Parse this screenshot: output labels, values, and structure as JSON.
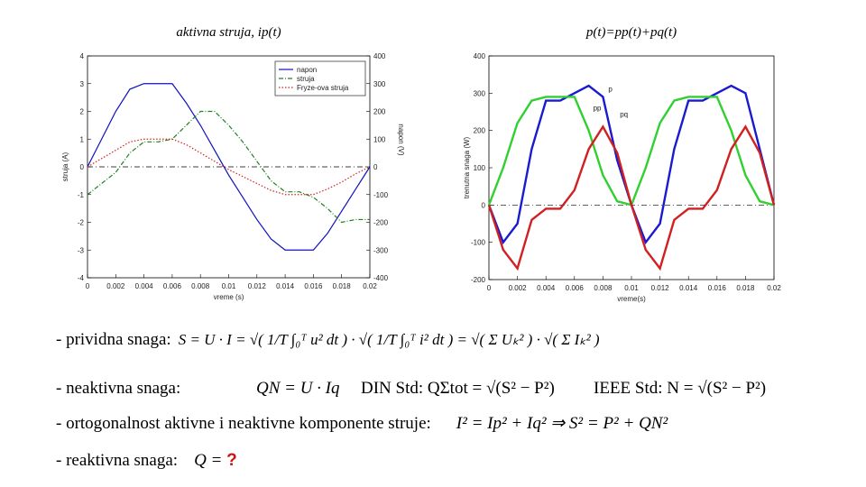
{
  "chart_data": [
    {
      "type": "line",
      "title": "aktivna struja, ip(t)",
      "x_label": "vreme (s)",
      "y_label": "struja (A)",
      "y2_label": "napon (V)",
      "x": [
        0,
        0.001,
        0.002,
        0.003,
        0.004,
        0.005,
        0.006,
        0.007,
        0.008,
        0.009,
        0.01,
        0.011,
        0.012,
        0.013,
        0.014,
        0.015,
        0.016,
        0.017,
        0.018,
        0.019,
        0.02
      ],
      "xlim": [
        0,
        0.02
      ],
      "xticks": [
        0,
        0.002,
        0.004,
        0.006,
        0.008,
        0.01,
        0.012,
        0.014,
        0.016,
        0.018,
        0.02
      ],
      "ylim": [
        -4,
        4
      ],
      "yticks": [
        -4,
        -3,
        -2,
        -1,
        0,
        1,
        2,
        3,
        4
      ],
      "y2lim": [
        -400,
        400
      ],
      "y2ticks": [
        -400,
        -300,
        -200,
        -100,
        0,
        100,
        200,
        300,
        400
      ],
      "legend": "upper right",
      "series": [
        {
          "name": "napon",
          "color": "#1010c0",
          "axis": "y2",
          "values": [
            0,
            100,
            200,
            280,
            300,
            300,
            300,
            230,
            150,
            60,
            -30,
            -110,
            -190,
            -260,
            -300,
            -300,
            -300,
            -240,
            -160,
            -80,
            0
          ]
        },
        {
          "name": "struja",
          "color": "#208020",
          "values": [
            -1,
            -0.6,
            -0.2,
            0.5,
            0.9,
            0.9,
            1,
            1.5,
            2,
            2,
            1.5,
            0.9,
            0.2,
            -0.5,
            -0.9,
            -0.9,
            -1.1,
            -1.5,
            -2,
            -1.9,
            -1.9
          ]
        },
        {
          "name": "Fryze-ova struja",
          "color": "#d02020",
          "values": [
            0,
            0.3,
            0.6,
            0.9,
            1,
            1,
            1,
            0.8,
            0.5,
            0.2,
            -0.1,
            -0.35,
            -0.6,
            -0.85,
            -1,
            -1,
            -1,
            -0.8,
            -0.55,
            -0.25,
            0
          ]
        }
      ]
    },
    {
      "type": "line",
      "title": "p(t)=pp(t)+pq(t)",
      "x_label": "vreme(s)",
      "y_label": "trenutna snaga (W)",
      "x": [
        0,
        0.001,
        0.002,
        0.003,
        0.004,
        0.005,
        0.006,
        0.007,
        0.008,
        0.009,
        0.01,
        0.011,
        0.012,
        0.013,
        0.014,
        0.015,
        0.016,
        0.017,
        0.018,
        0.019,
        0.02
      ],
      "xlim": [
        0,
        0.02
      ],
      "xticks": [
        0,
        0.002,
        0.004,
        0.006,
        0.008,
        0.01,
        0.012,
        0.014,
        0.016,
        0.018,
        0.02
      ],
      "ylim": [
        -200,
        400
      ],
      "yticks": [
        -200,
        -100,
        0,
        100,
        200,
        300,
        400
      ],
      "series": [
        {
          "name": "p",
          "color": "#1a1ad0",
          "values": [
            0,
            -100,
            -50,
            150,
            280,
            280,
            300,
            320,
            290,
            120,
            0,
            -100,
            -50,
            150,
            280,
            280,
            300,
            320,
            300,
            150,
            0
          ]
        },
        {
          "name": "pp",
          "color": "#30d030",
          "values": [
            0,
            100,
            220,
            280,
            290,
            290,
            290,
            200,
            80,
            10,
            0,
            100,
            220,
            280,
            290,
            290,
            290,
            200,
            80,
            10,
            0
          ]
        },
        {
          "name": "pq",
          "color": "#d02020",
          "values": [
            0,
            -120,
            -170,
            -40,
            -10,
            -10,
            40,
            150,
            210,
            140,
            0,
            -120,
            -170,
            -40,
            -10,
            -10,
            40,
            150,
            210,
            140,
            0
          ]
        }
      ]
    }
  ],
  "rows": [
    {
      "label": "- prividna snaga:",
      "formulas": [
        "S = U · I = √( 1/T ∫₀ᵀ u² dt ) · √( 1/T ∫₀ᵀ i² dt ) = √( Σ Uₖ² ) · √( Σ Iₖ² )"
      ]
    },
    {
      "label": "- neaktivna snaga:",
      "formulas": [
        "QN = U · Iq",
        "DIN Std: QΣtot = √(S² − P²)",
        "IEEE Std: N = √(S² − P²)"
      ]
    },
    {
      "label": "- ortogonalnost aktivne i neaktivne komponente struje:",
      "formulas": [
        "I² = Ip² + Iq²  ⇒  S² = P² + QN²"
      ]
    },
    {
      "label": "- reaktivna snaga:",
      "formulas": [
        "Q = "
      ],
      "unknown": "?"
    }
  ]
}
